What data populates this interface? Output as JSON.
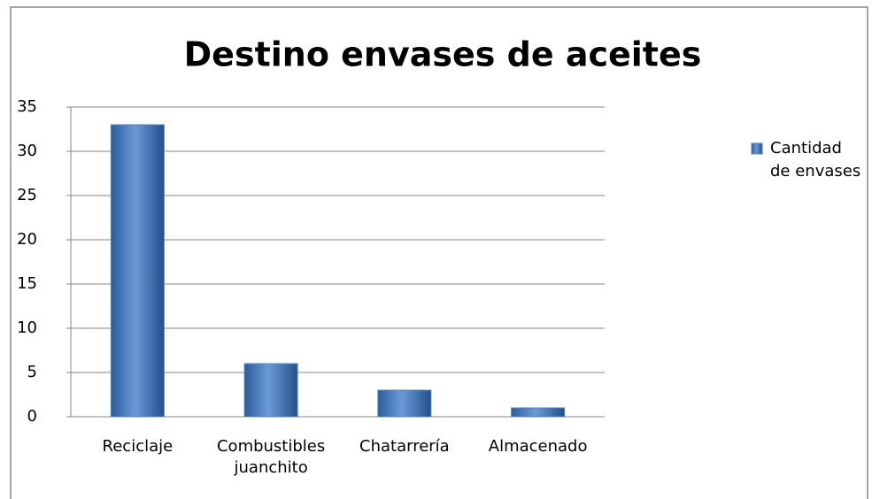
{
  "chart_data": {
    "type": "bar",
    "title": "Destino envases de aceites",
    "categories": [
      "Reciclaje",
      "Combustibles juanchito",
      "Chatarrería",
      "Almacenado"
    ],
    "series": [
      {
        "name": "Cantidad de envases",
        "color": "#4f81bd",
        "values": [
          33,
          6,
          3,
          1
        ]
      }
    ],
    "ylim": [
      0,
      35
    ],
    "yticks": [
      0,
      5,
      10,
      15,
      20,
      25,
      30,
      35
    ],
    "grid": true,
    "legend": "right"
  }
}
